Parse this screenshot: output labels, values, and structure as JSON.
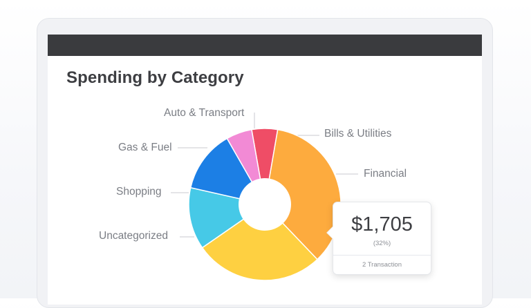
{
  "window": {
    "title": "Spending by Category"
  },
  "chart_data": {
    "type": "pie",
    "title": "Spending by Category",
    "slices": [
      {
        "name": "Bills & Utilities",
        "value": 5,
        "color": "#ef4d66"
      },
      {
        "name": "Financial",
        "value": 32,
        "color": "#fdab3e"
      },
      {
        "name": "Uncategorized",
        "value": 25,
        "color": "#fed041"
      },
      {
        "name": "Shopping",
        "value": 12,
        "color": "#46c9e7"
      },
      {
        "name": "Gas & Fuel",
        "value": 12,
        "color": "#1c7fe5"
      },
      {
        "name": "Auto & Transport",
        "value": 5,
        "color": "#f28ad5"
      }
    ]
  },
  "tooltip": {
    "amount": "$1,705",
    "percent": "(32%)",
    "transactions": "2 Transaction"
  }
}
